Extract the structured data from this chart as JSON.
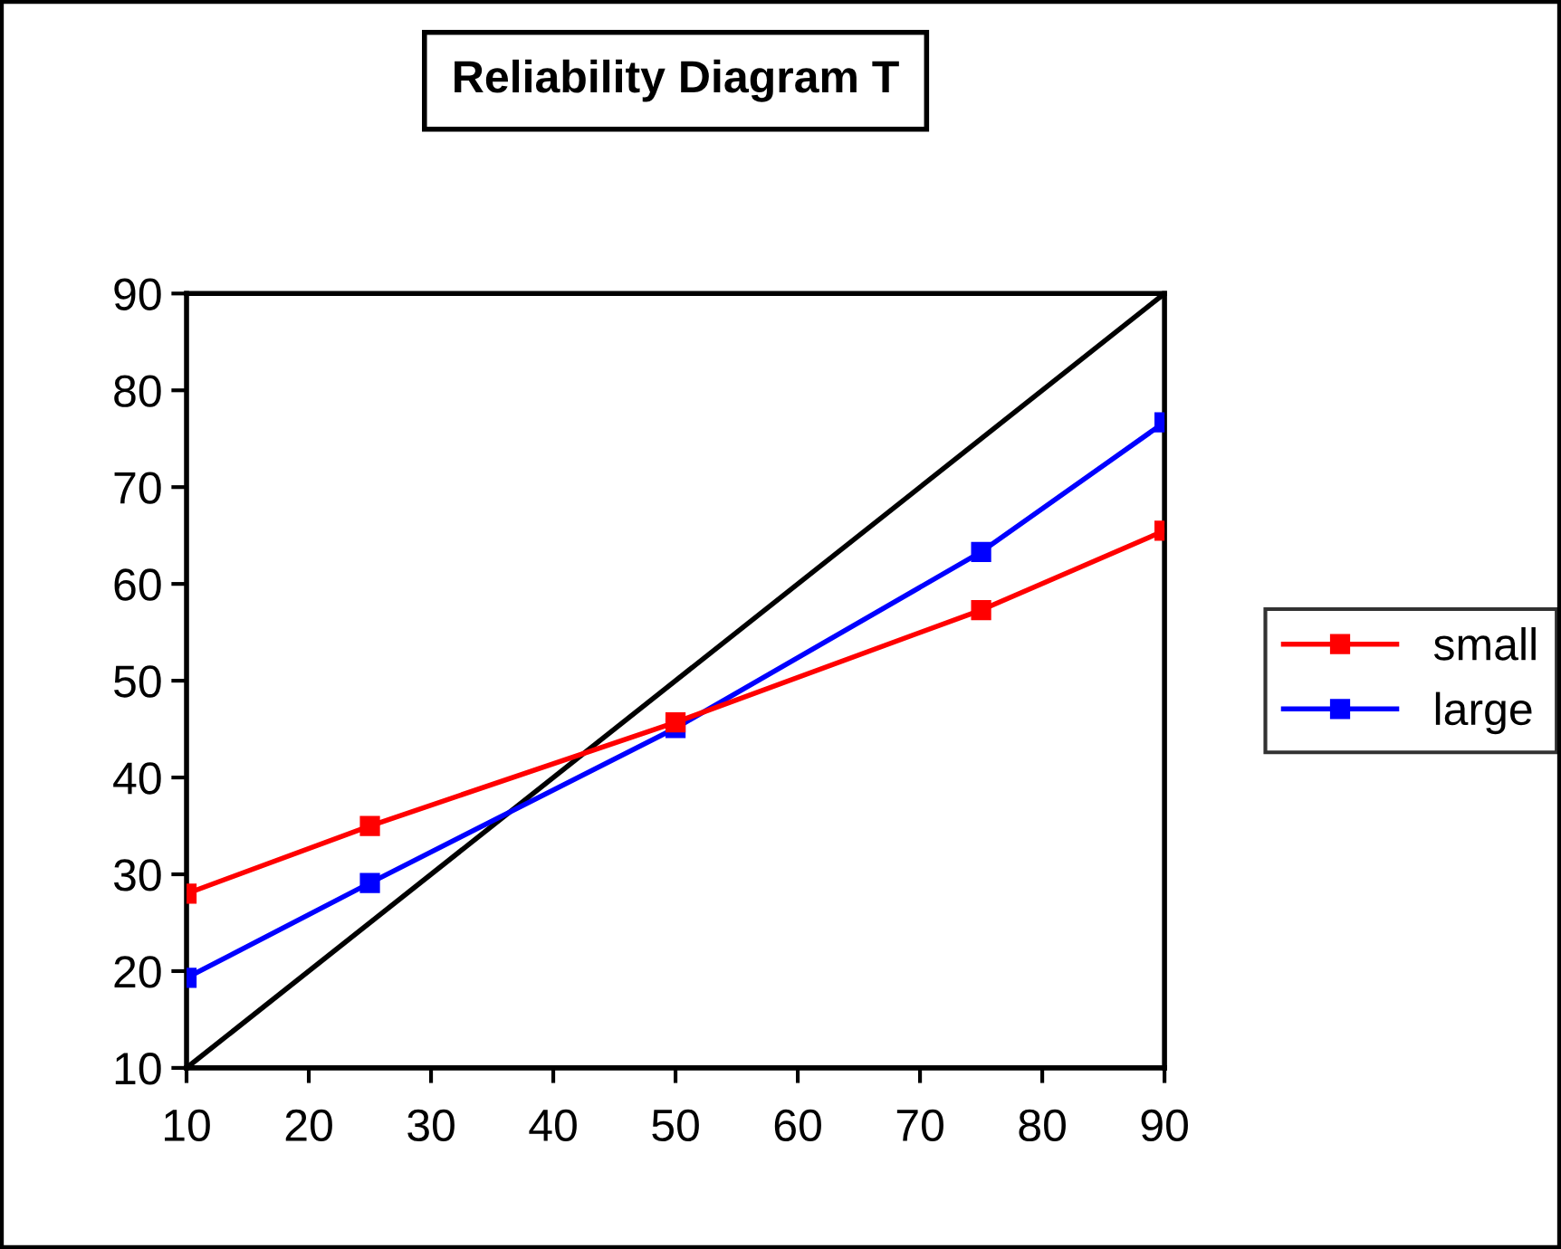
{
  "chart_data": {
    "type": "line",
    "title": "Reliability Diagram T",
    "series": [
      {
        "name": "small",
        "color": "#ff0000",
        "x": [
          10,
          25,
          50,
          75,
          90
        ],
        "values": [
          28,
          35,
          45.7,
          57.3,
          65.5
        ],
        "marker": "square"
      },
      {
        "name": "large",
        "color": "#0000ff",
        "x": [
          10,
          25,
          50,
          75,
          90
        ],
        "values": [
          19.3,
          29.1,
          45.1,
          63.3,
          76.7
        ],
        "marker": "square"
      },
      {
        "color": "#000000",
        "x": [
          10,
          90
        ],
        "values": [
          10,
          90
        ],
        "marker": "none"
      }
    ],
    "xlim": [
      10,
      90
    ],
    "ylim": [
      10,
      90
    ],
    "xticks": [
      10,
      20,
      30,
      40,
      50,
      60,
      70,
      80,
      90
    ],
    "yticks": [
      10,
      20,
      30,
      40,
      50,
      60,
      70,
      80,
      90
    ],
    "grid": false,
    "legend": "right",
    "line_style": "solid"
  }
}
